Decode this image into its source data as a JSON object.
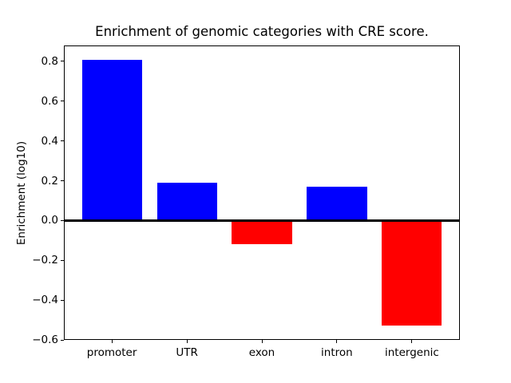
{
  "chart_data": {
    "type": "bar",
    "title": "Enrichment of genomic categories with CRE score.",
    "ylabel": "Enrichment (log10)",
    "xlabel": "",
    "categories": [
      "promoter",
      "UTR",
      "exon",
      "intron",
      "intergenic"
    ],
    "values": [
      0.81,
      0.19,
      -0.12,
      0.17,
      -0.53
    ],
    "bar_colors": [
      "#0000ff",
      "#0000ff",
      "#ff0000",
      "#0000ff",
      "#ff0000"
    ],
    "positive_color": "#0000ff",
    "negative_color": "#ff0000",
    "background_color": "#ffffff",
    "axis_color": "#000000",
    "ylim": [
      -0.6,
      0.88
    ],
    "yticks": [
      0.8,
      0.6,
      0.4,
      0.2,
      0.0,
      -0.2,
      -0.4,
      -0.6
    ],
    "ytick_labels": [
      "0.8",
      "0.6",
      "0.4",
      "0.2",
      "0.0",
      "−0.2",
      "−0.4",
      "−0.6"
    ],
    "zero_line": true,
    "grid": false,
    "legend": "none",
    "bar_width_fraction": 0.8
  }
}
